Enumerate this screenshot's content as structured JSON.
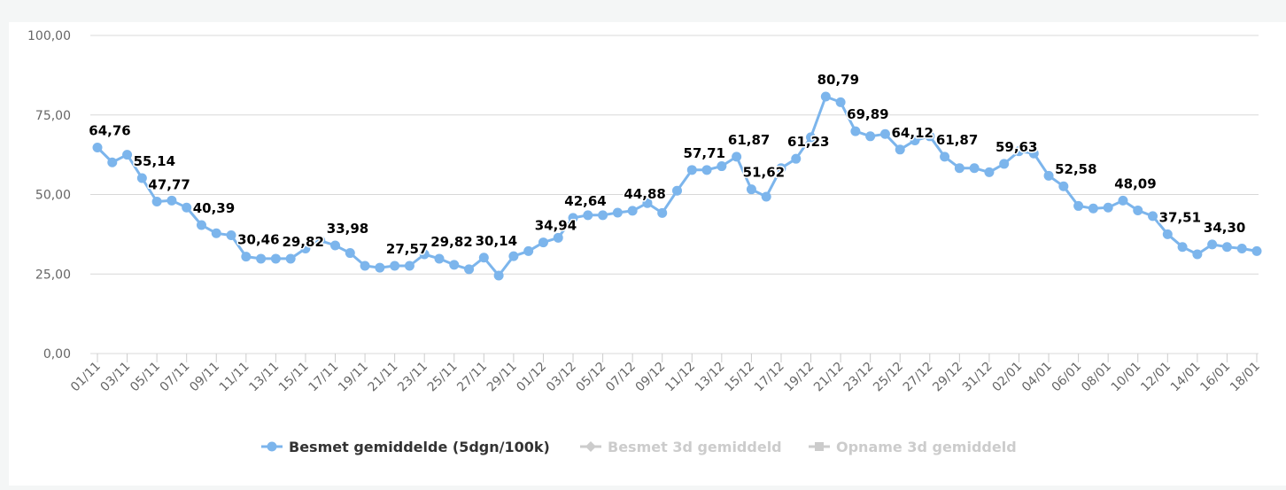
{
  "colors": {
    "series": "#7cb5ec",
    "legend_inactive": "#cccccc",
    "legend_active_text": "#333333",
    "grid": "#d8d8d8"
  },
  "legend": [
    {
      "label": "Besmet gemiddelde (5dgn/100k)",
      "icon": "circle-line-icon",
      "active": true
    },
    {
      "label": "Besmet 3d gemiddeld",
      "icon": "diamond-line-icon",
      "active": false
    },
    {
      "label": "Opname 3d gemiddeld",
      "icon": "square-line-icon",
      "active": false
    }
  ],
  "chart_data": {
    "type": "line",
    "ylim": [
      0,
      100
    ],
    "yticks": [
      "0,00",
      "25,00",
      "50,00",
      "75,00",
      "100,00"
    ],
    "yticks_values": [
      0,
      25,
      50,
      75,
      100
    ],
    "grid": true,
    "legend_placement": "bottom",
    "x": [
      "01/11",
      "02/11",
      "03/11",
      "04/11",
      "05/11",
      "06/11",
      "07/11",
      "08/11",
      "09/11",
      "10/11",
      "11/11",
      "12/11",
      "13/11",
      "14/11",
      "15/11",
      "16/11",
      "17/11",
      "18/11",
      "19/11",
      "20/11",
      "21/11",
      "22/11",
      "23/11",
      "24/11",
      "25/11",
      "26/11",
      "27/11",
      "28/11",
      "29/11",
      "30/11",
      "01/12",
      "02/12",
      "03/12",
      "04/12",
      "05/12",
      "06/12",
      "07/12",
      "08/12",
      "09/12",
      "10/12",
      "11/12",
      "12/12",
      "13/12",
      "14/12",
      "15/12",
      "16/12",
      "17/12",
      "18/12",
      "19/12",
      "20/12",
      "21/12",
      "22/12",
      "23/12",
      "24/12",
      "25/12",
      "26/12",
      "27/12",
      "28/12",
      "29/12",
      "30/12",
      "31/12",
      "01/01",
      "02/01",
      "03/01",
      "04/01",
      "05/01",
      "06/01",
      "07/01",
      "08/01",
      "09/01",
      "10/01",
      "11/01",
      "12/01",
      "13/01",
      "14/01",
      "15/01",
      "16/01",
      "17/01",
      "18/01"
    ],
    "xtick_labels": [
      "01/11",
      "03/11",
      "05/11",
      "07/11",
      "09/11",
      "11/11",
      "13/11",
      "15/11",
      "17/11",
      "19/11",
      "21/11",
      "23/11",
      "25/11",
      "27/11",
      "29/11",
      "01/12",
      "03/12",
      "05/12",
      "07/12",
      "09/12",
      "11/12",
      "13/12",
      "15/12",
      "17/12",
      "19/12",
      "21/12",
      "23/12",
      "25/12",
      "27/12",
      "29/12",
      "31/12",
      "02/01",
      "04/01",
      "06/01",
      "08/01",
      "10/01",
      "12/01",
      "14/01",
      "16/01",
      "18/01"
    ],
    "series": [
      {
        "name": "Besmet gemiddelde (5dgn/100k)",
        "values": [
          64.76,
          60.1,
          62.5,
          55.14,
          47.77,
          48.1,
          45.9,
          40.39,
          37.8,
          37.2,
          30.46,
          29.82,
          29.82,
          29.82,
          33.0,
          35.5,
          33.98,
          31.6,
          27.57,
          27.0,
          27.57,
          27.57,
          31.2,
          29.82,
          27.9,
          26.5,
          30.14,
          24.5,
          30.6,
          32.2,
          34.94,
          36.4,
          42.64,
          43.5,
          43.5,
          44.3,
          44.88,
          47.3,
          44.2,
          51.2,
          57.71,
          57.71,
          58.9,
          61.87,
          51.62,
          49.3,
          58.3,
          61.23,
          68.0,
          80.79,
          79.0,
          69.89,
          68.3,
          69.0,
          64.12,
          67.0,
          68.3,
          61.87,
          58.3,
          58.3,
          57.0,
          59.63,
          63.6,
          62.9,
          55.9,
          52.58,
          46.4,
          45.6,
          45.9,
          48.09,
          45.0,
          43.2,
          37.51,
          33.5,
          31.2,
          34.3,
          33.5,
          33.0,
          32.2
        ]
      }
    ],
    "labels": [
      {
        "i": 0,
        "text": "64,76"
      },
      {
        "i": 3,
        "text": "55,14"
      },
      {
        "i": 4,
        "text": "47,77"
      },
      {
        "i": 7,
        "text": "40,39"
      },
      {
        "i": 10,
        "text": "30,46"
      },
      {
        "i": 13,
        "text": "29,82"
      },
      {
        "i": 16,
        "text": "33,98"
      },
      {
        "i": 20,
        "text": "27,57"
      },
      {
        "i": 23,
        "text": "29,82"
      },
      {
        "i": 26,
        "text": "30,14"
      },
      {
        "i": 30,
        "text": "34,94"
      },
      {
        "i": 32,
        "text": "42,64"
      },
      {
        "i": 36,
        "text": "44,88"
      },
      {
        "i": 40,
        "text": "57,71"
      },
      {
        "i": 43,
        "text": "61,87"
      },
      {
        "i": 44,
        "text": "51,62"
      },
      {
        "i": 47,
        "text": "61,23"
      },
      {
        "i": 49,
        "text": "80,79"
      },
      {
        "i": 51,
        "text": "69,89"
      },
      {
        "i": 54,
        "text": "64,12"
      },
      {
        "i": 57,
        "text": "61,87"
      },
      {
        "i": 61,
        "text": "59,63"
      },
      {
        "i": 65,
        "text": "52,58"
      },
      {
        "i": 69,
        "text": "48,09"
      },
      {
        "i": 72,
        "text": "37,51"
      },
      {
        "i": 75,
        "text": "34,30"
      }
    ]
  }
}
